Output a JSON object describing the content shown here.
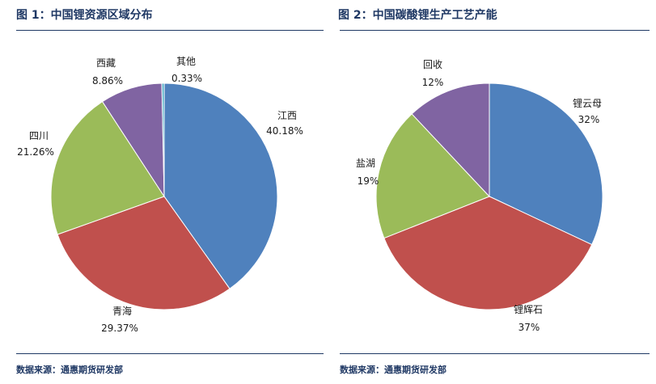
{
  "charts": [
    {
      "title": "图 1：中国锂资源区域分布",
      "source": "数据来源：通惠期货研发部"
    },
    {
      "title": "图 2：中国碳酸锂生产工艺产能",
      "source": "数据来源：通惠期货研发部"
    }
  ],
  "chart_data": [
    {
      "type": "pie",
      "title": "图 1：中国锂资源区域分布",
      "start_angle_deg": 0,
      "direction": "clockwise",
      "slices": [
        {
          "label": "江西",
          "value": 40.18,
          "value_label": "40.18%",
          "color": "#4f81bd"
        },
        {
          "label": "青海",
          "value": 29.37,
          "value_label": "29.37%",
          "color": "#c0504d"
        },
        {
          "label": "四川",
          "value": 21.26,
          "value_label": "21.26%",
          "color": "#9bbb59"
        },
        {
          "label": "西藏",
          "value": 8.86,
          "value_label": "8.86%",
          "color": "#8064a2"
        },
        {
          "label": "其他",
          "value": 0.33,
          "value_label": "0.33%",
          "color": "#4bacc6"
        }
      ]
    },
    {
      "type": "pie",
      "title": "图 2：中国碳酸锂生产工艺产能",
      "start_angle_deg": 0,
      "direction": "clockwise",
      "slices": [
        {
          "label": "锂云母",
          "value": 32,
          "value_label": "32%",
          "color": "#4f81bd"
        },
        {
          "label": "锂辉石",
          "value": 37,
          "value_label": "37%",
          "color": "#c0504d"
        },
        {
          "label": "盐湖",
          "value": 19,
          "value_label": "19%",
          "color": "#9bbb59"
        },
        {
          "label": "回收",
          "value": 12,
          "value_label": "12%",
          "color": "#8064a2"
        }
      ]
    }
  ]
}
